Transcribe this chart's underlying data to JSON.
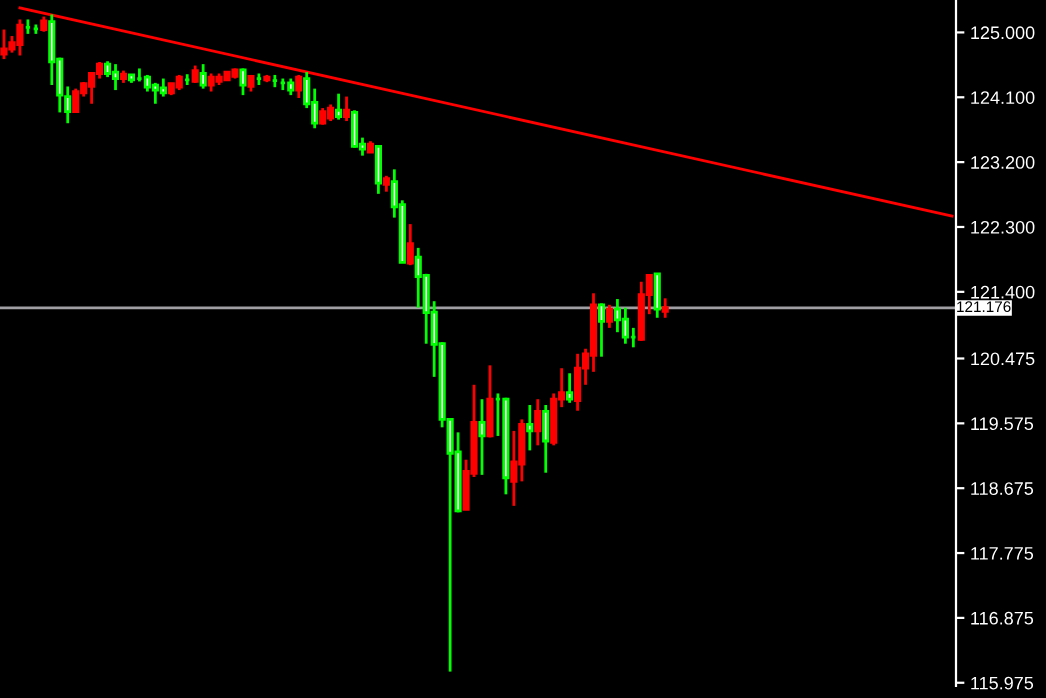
{
  "chart_data": {
    "type": "candlestick",
    "categories": [
      null,
      null,
      null,
      null,
      null,
      null,
      null,
      null,
      null,
      null,
      null,
      null,
      null,
      null,
      null,
      null,
      null,
      null,
      null,
      null,
      null,
      null,
      null,
      null,
      null,
      null,
      null,
      null,
      null,
      null,
      null,
      null,
      null,
      null,
      null,
      null,
      null,
      null,
      null,
      null,
      null,
      null,
      null,
      null,
      null,
      null,
      null,
      null,
      null,
      null,
      null,
      null,
      null,
      null,
      null,
      null,
      null,
      null,
      null,
      null,
      null,
      null,
      null,
      null,
      null,
      null,
      null,
      null,
      null,
      null,
      null,
      null,
      null,
      null,
      null,
      null,
      null,
      null,
      null,
      null,
      null,
      null,
      null,
      null,
      null,
      null,
      null,
      null,
      null,
      null,
      null,
      null,
      null,
      null,
      null,
      null,
      null,
      null,
      null,
      null,
      null,
      null,
      null,
      null,
      null,
      null,
      null,
      null,
      null,
      null,
      null,
      null,
      null,
      null,
      null,
      null,
      null,
      null,
      null,
      null
    ],
    "ohlc": [
      [
        124.7,
        125.04,
        124.63,
        124.77
      ],
      [
        124.77,
        124.95,
        124.72,
        124.86
      ],
      [
        124.83,
        125.18,
        124.68,
        125.1
      ],
      [
        125.07,
        125.18,
        124.98,
        125.07
      ],
      [
        125.05,
        125.11,
        124.98,
        125.05
      ],
      [
        125.04,
        125.22,
        125.01,
        125.16
      ],
      [
        125.15,
        125.25,
        124.27,
        124.59
      ],
      [
        124.63,
        124.65,
        123.89,
        124.13
      ],
      [
        124.11,
        124.25,
        123.74,
        123.9
      ],
      [
        123.9,
        124.22,
        123.89,
        124.18
      ],
      [
        124.16,
        124.31,
        124.11,
        124.29
      ],
      [
        124.25,
        124.45,
        124.01,
        124.43
      ],
      [
        124.43,
        124.59,
        124.36,
        124.56
      ],
      [
        124.56,
        124.6,
        124.38,
        124.43
      ],
      [
        124.45,
        124.56,
        124.2,
        124.36
      ],
      [
        124.36,
        124.47,
        124.3,
        124.42
      ],
      [
        124.41,
        124.42,
        124.3,
        124.34
      ],
      [
        124.36,
        124.5,
        124.32,
        124.36
      ],
      [
        124.38,
        124.41,
        124.18,
        124.24
      ],
      [
        124.27,
        124.3,
        124.01,
        124.2
      ],
      [
        124.23,
        124.36,
        124.11,
        124.16
      ],
      [
        124.16,
        124.3,
        124.13,
        124.29
      ],
      [
        124.24,
        124.41,
        124.2,
        124.38
      ],
      [
        124.34,
        124.42,
        124.27,
        124.34
      ],
      [
        124.32,
        124.54,
        124.3,
        124.47
      ],
      [
        124.43,
        124.56,
        124.22,
        124.27
      ],
      [
        124.27,
        124.43,
        124.18,
        124.38
      ],
      [
        124.32,
        124.43,
        124.27,
        124.38
      ],
      [
        124.34,
        124.45,
        124.34,
        124.45
      ],
      [
        124.39,
        124.5,
        124.36,
        124.48
      ],
      [
        124.48,
        124.5,
        124.13,
        124.27
      ],
      [
        124.25,
        124.41,
        124.18,
        124.39
      ],
      [
        124.36,
        124.43,
        124.27,
        124.36
      ],
      [
        124.34,
        124.41,
        124.31,
        124.38
      ],
      [
        124.33,
        124.41,
        124.24,
        124.33
      ],
      [
        124.3,
        124.36,
        124.2,
        124.3
      ],
      [
        124.3,
        124.36,
        124.13,
        124.2
      ],
      [
        124.2,
        124.41,
        124.09,
        124.38
      ],
      [
        124.36,
        124.45,
        123.95,
        124.01
      ],
      [
        124.03,
        124.22,
        123.67,
        123.74
      ],
      [
        123.74,
        123.95,
        123.72,
        123.9
      ],
      [
        123.81,
        124.0,
        123.77,
        123.95
      ],
      [
        123.92,
        124.15,
        123.79,
        123.83
      ],
      [
        123.83,
        124.11,
        123.77,
        123.92
      ],
      [
        123.89,
        123.92,
        123.4,
        123.42
      ],
      [
        123.45,
        123.54,
        123.29,
        123.38
      ],
      [
        123.34,
        123.49,
        123.34,
        123.45
      ],
      [
        123.42,
        123.43,
        122.76,
        122.91
      ],
      [
        122.89,
        123.01,
        122.79,
        122.97
      ],
      [
        122.93,
        123.1,
        122.43,
        122.58
      ],
      [
        122.61,
        122.67,
        121.8,
        121.81
      ],
      [
        121.8,
        122.34,
        121.77,
        122.07
      ],
      [
        121.88,
        122.01,
        121.18,
        121.61
      ],
      [
        121.63,
        121.65,
        120.68,
        121.11
      ],
      [
        121.12,
        121.27,
        120.22,
        120.67
      ],
      [
        120.68,
        120.7,
        119.52,
        119.63
      ],
      [
        119.63,
        119.63,
        116.13,
        119.16
      ],
      [
        119.18,
        119.45,
        118.34,
        118.36
      ],
      [
        118.38,
        119.07,
        118.38,
        118.91
      ],
      [
        118.88,
        120.11,
        118.83,
        119.59
      ],
      [
        119.59,
        119.91,
        118.86,
        119.4
      ],
      [
        119.4,
        120.38,
        119.38,
        119.91
      ],
      [
        119.91,
        119.99,
        119.4,
        119.91
      ],
      [
        119.91,
        119.93,
        118.59,
        118.82
      ],
      [
        118.77,
        119.47,
        118.43,
        119.04
      ],
      [
        119.01,
        119.63,
        118.77,
        119.56
      ],
      [
        119.56,
        119.83,
        119.2,
        119.47
      ],
      [
        119.47,
        119.91,
        119.27,
        119.74
      ],
      [
        119.74,
        119.83,
        118.89,
        119.33
      ],
      [
        119.31,
        119.99,
        119.27,
        119.91
      ],
      [
        119.91,
        120.34,
        119.8,
        120.0
      ],
      [
        120.0,
        120.27,
        119.86,
        119.91
      ],
      [
        119.89,
        120.54,
        119.75,
        120.34
      ],
      [
        120.34,
        120.61,
        120.11,
        120.54
      ],
      [
        120.52,
        121.38,
        120.29,
        121.22
      ],
      [
        121.22,
        121.24,
        120.5,
        120.99
      ],
      [
        120.99,
        121.22,
        120.9,
        121.16
      ],
      [
        121.16,
        121.3,
        120.84,
        121.01
      ],
      [
        121.02,
        121.18,
        120.68,
        120.77
      ],
      [
        120.77,
        120.9,
        120.63,
        120.77
      ],
      [
        120.74,
        121.54,
        120.72,
        121.36
      ],
      [
        121.36,
        121.63,
        121.09,
        121.63
      ],
      [
        121.65,
        121.65,
        121.04,
        121.16
      ],
      [
        121.13,
        121.31,
        121.04,
        121.18
      ],
      null,
      null,
      null,
      null,
      null,
      null,
      null,
      null,
      null,
      null,
      null,
      null,
      null,
      null,
      null,
      null,
      null,
      null,
      null,
      null,
      null,
      null,
      null,
      null,
      null,
      null,
      null,
      null,
      null,
      null,
      null,
      null,
      null,
      null,
      null,
      null
    ],
    "colors": [
      "#ff0000",
      "#ff0000",
      "#ff0000",
      "#00ff00",
      "#00ff00",
      "#ff0000",
      "#00ff00",
      "#00ff00",
      "#00ff00",
      "#ff0000",
      "#ff0000",
      "#ff0000",
      "#ff0000",
      "#00ff00",
      "#00ff00",
      "#ff0000",
      "#00ff00",
      "#00ff00",
      "#00ff00",
      "#00ff00",
      "#00ff00",
      "#ff0000",
      "#ff0000",
      "#00ff00",
      "#ff0000",
      "#00ff00",
      "#ff0000",
      "#ff0000",
      "#ff0000",
      "#ff0000",
      "#00ff00",
      "#ff0000",
      "#00ff00",
      "#ff0000",
      "#00ff00",
      "#00ff00",
      "#00ff00",
      "#ff0000",
      "#00ff00",
      "#00ff00",
      "#ff0000",
      "#ff0000",
      "#00ff00",
      "#ff0000",
      "#00ff00",
      "#00ff00",
      "#ff0000",
      "#00ff00",
      "#ff0000",
      "#00ff00",
      "#00ff00",
      "#ff0000",
      "#00ff00",
      "#00ff00",
      "#00ff00",
      "#00ff00",
      "#00ff00",
      "#00ff00",
      "#ff0000",
      "#ff0000",
      "#00ff00",
      "#ff0000",
      "#00ff00",
      "#00ff00",
      "#ff0000",
      "#ff0000",
      "#00ff00",
      "#ff0000",
      "#00ff00",
      "#ff0000",
      "#ff0000",
      "#00ff00",
      "#ff0000",
      "#ff0000",
      "#ff0000",
      "#00ff00",
      "#ff0000",
      "#00ff00",
      "#00ff00",
      "#00ff00",
      "#ff0000",
      "#ff0000",
      "#00ff00",
      "#ff0000",
      null,
      null,
      null,
      null,
      null,
      null,
      null,
      null,
      null,
      null,
      null,
      null,
      null,
      null,
      null,
      null,
      null,
      null,
      null,
      null,
      null,
      null,
      null,
      null,
      null,
      null,
      null,
      null,
      null,
      null,
      null,
      null,
      null,
      null,
      null,
      null
    ],
    "series": [
      {
        "type": "line",
        "values": [
          null,
          null,
          125.34,
          null,
          null,
          null,
          null,
          null,
          null,
          null,
          null,
          null,
          null,
          null,
          null,
          null,
          null,
          null,
          null,
          null,
          null,
          null,
          null,
          null,
          null,
          null,
          null,
          null,
          null,
          null,
          null,
          null,
          null,
          null,
          null,
          null,
          null,
          null,
          null,
          null,
          null,
          null,
          null,
          null,
          null,
          null,
          null,
          null,
          null,
          null,
          null,
          null,
          null,
          null,
          null,
          null,
          null,
          null,
          null,
          null,
          null,
          null,
          null,
          null,
          null,
          null,
          null,
          null,
          null,
          null,
          null,
          null,
          null,
          null,
          null,
          null,
          null,
          null,
          null,
          null,
          null,
          null,
          null,
          null,
          null,
          null,
          null,
          null,
          null,
          null,
          null,
          null,
          null,
          null,
          null,
          null,
          null,
          null,
          null,
          null,
          null,
          null,
          null,
          null,
          null,
          null,
          null,
          null,
          null,
          null,
          null,
          null,
          null,
          null,
          null,
          null,
          null,
          null,
          null,
          122.45
        ],
        "color": "#ff0000"
      }
    ],
    "ref_lines": [
      {
        "axis": "y",
        "value": 121.176,
        "label": "121.176",
        "color": "#a0a0a4"
      }
    ],
    "ylim": [
      115.93,
      125.45
    ],
    "yticks": [
      {
        "value": 125.0,
        "label": "125.000"
      },
      {
        "value": 124.1,
        "label": "124.100"
      },
      {
        "value": 123.2,
        "label": "123.200"
      },
      {
        "value": 122.3,
        "label": "122.300"
      },
      {
        "value": 121.4,
        "label": "121.400"
      },
      {
        "value": 120.475,
        "label": "120.475"
      },
      {
        "value": 119.575,
        "label": "119.575"
      },
      {
        "value": 118.675,
        "label": "118.675"
      },
      {
        "value": 117.775,
        "label": "117.775"
      },
      {
        "value": 116.875,
        "label": "116.875"
      },
      {
        "value": 115.975,
        "label": "115.975"
      }
    ],
    "tick_labels": "y",
    "grid": false,
    "legend": false
  }
}
